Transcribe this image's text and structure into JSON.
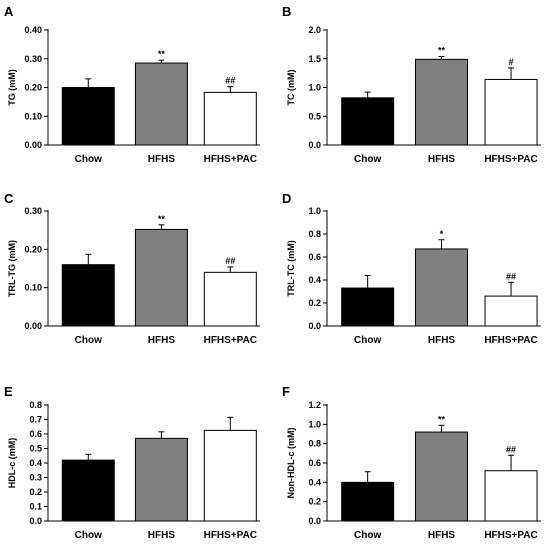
{
  "colors": {
    "chow": "#000000",
    "hfhs": "#808080",
    "hfhs_pac": "#ffffff",
    "axis": "#000000"
  },
  "chart_data": [
    {
      "panel": "A",
      "type": "bar",
      "categories": [
        "Chow",
        "HFHS",
        "HFHS+PAC"
      ],
      "values": [
        0.2,
        0.285,
        0.183
      ],
      "errors": [
        0.03,
        0.01,
        0.02
      ],
      "annotations": [
        "",
        "**",
        "##"
      ],
      "ylabel": "TG (mM)",
      "ylim": [
        0,
        0.4
      ],
      "yticks": [
        0,
        0.1,
        0.2,
        0.3,
        0.4
      ],
      "ytick_labels": [
        "0.00",
        "0.10",
        "0.20",
        "0.30",
        "0.40"
      ],
      "grid": false,
      "legend": "none"
    },
    {
      "panel": "B",
      "type": "bar",
      "categories": [
        "Chow",
        "HFHS",
        "HFHS+PAC"
      ],
      "values": [
        0.82,
        1.49,
        1.14
      ],
      "errors": [
        0.1,
        0.05,
        0.2
      ],
      "annotations": [
        "",
        "**",
        "#"
      ],
      "ylabel": "TC (mM)",
      "ylim": [
        0,
        2.0
      ],
      "yticks": [
        0,
        0.5,
        1.0,
        1.5,
        2.0
      ],
      "ytick_labels": [
        "0.0",
        "0.5",
        "1.0",
        "1.5",
        "2.0"
      ],
      "grid": false,
      "legend": "none"
    },
    {
      "panel": "C",
      "type": "bar",
      "categories": [
        "Chow",
        "HFHS",
        "HFHS+PAC"
      ],
      "values": [
        0.16,
        0.252,
        0.14
      ],
      "errors": [
        0.027,
        0.012,
        0.014
      ],
      "annotations": [
        "",
        "**",
        "##"
      ],
      "ylabel": "TRL-TG  (mM)",
      "ylim": [
        0,
        0.3
      ],
      "yticks": [
        0,
        0.1,
        0.2,
        0.3
      ],
      "ytick_labels": [
        "0.00",
        "0.10",
        "0.20",
        "0.30"
      ],
      "grid": false,
      "legend": "none"
    },
    {
      "panel": "D",
      "type": "bar",
      "categories": [
        "Chow",
        "HFHS",
        "HFHS+PAC"
      ],
      "values": [
        0.33,
        0.67,
        0.26
      ],
      "errors": [
        0.11,
        0.08,
        0.12
      ],
      "annotations": [
        "",
        "*",
        "##"
      ],
      "ylabel": "TRL-TC  (mM)",
      "ylim": [
        0,
        1.0
      ],
      "yticks": [
        0,
        0.2,
        0.4,
        0.6,
        0.8,
        1.0
      ],
      "ytick_labels": [
        "0.0",
        "0.2",
        "0.4",
        "0.6",
        "0.8",
        "1.0"
      ],
      "grid": false,
      "legend": "none"
    },
    {
      "panel": "E",
      "type": "bar",
      "categories": [
        "Chow",
        "HFHS",
        "HFHS+PAC"
      ],
      "values": [
        0.42,
        0.57,
        0.625
      ],
      "errors": [
        0.04,
        0.045,
        0.09
      ],
      "annotations": [
        "",
        "",
        ""
      ],
      "ylabel": "HDL-c (mM)",
      "ylim": [
        0,
        0.8
      ],
      "yticks": [
        0,
        0.1,
        0.2,
        0.3,
        0.4,
        0.5,
        0.6,
        0.7,
        0.8
      ],
      "ytick_labels": [
        "0.0",
        "0.1",
        "0.2",
        "0.3",
        "0.4",
        "0.5",
        "0.6",
        "0.7",
        "0.8"
      ],
      "grid": false,
      "legend": "none"
    },
    {
      "panel": "F",
      "type": "bar",
      "categories": [
        "Chow",
        "HFHS",
        "HFHS+PAC"
      ],
      "values": [
        0.4,
        0.92,
        0.52
      ],
      "errors": [
        0.11,
        0.07,
        0.16
      ],
      "annotations": [
        "",
        "**",
        "##"
      ],
      "ylabel": "Non-HDL-c (mM)",
      "ylim": [
        0,
        1.2
      ],
      "yticks": [
        0,
        0.2,
        0.4,
        0.6,
        0.8,
        1.0,
        1.2
      ],
      "ytick_labels": [
        "0.0",
        "0.2",
        "0.4",
        "0.6",
        "0.8",
        "1.0",
        "1.2"
      ],
      "grid": false,
      "legend": "none"
    }
  ]
}
